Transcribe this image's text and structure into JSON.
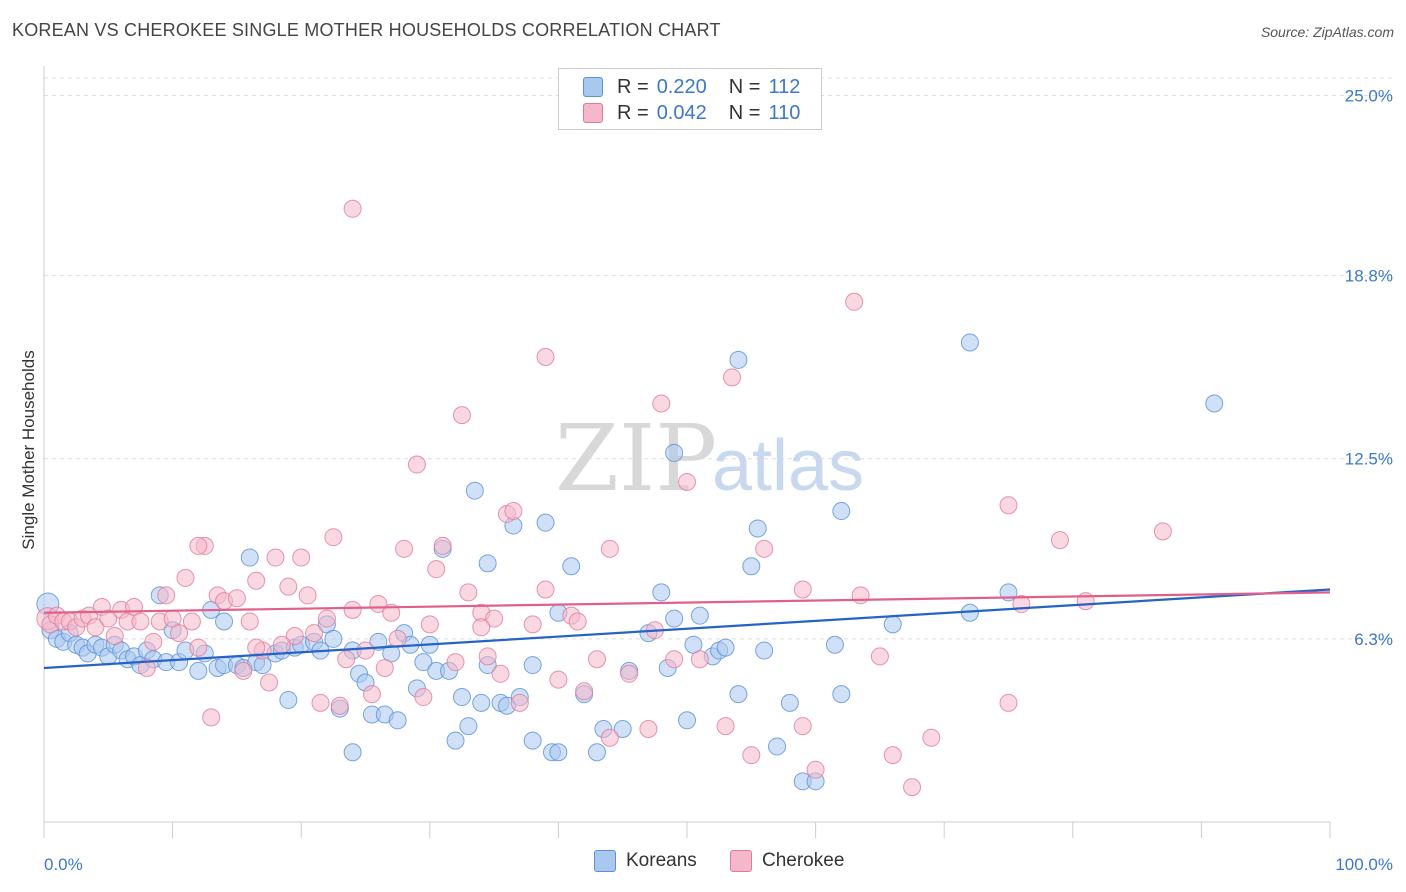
{
  "header": {
    "title": "KOREAN VS CHEROKEE SINGLE MOTHER HOUSEHOLDS CORRELATION CHART",
    "source": "Source: ZipAtlas.com"
  },
  "watermark": {
    "zip": "ZIP",
    "atlas": "atlas"
  },
  "legend": {
    "rows": [
      {
        "r_label": "R =",
        "r_value": "0.220",
        "n_label": "N =",
        "n_value": "112",
        "color": "#a9c8f0"
      },
      {
        "r_label": "R =",
        "r_value": "0.042",
        "n_label": "N =",
        "n_value": "110",
        "color": "#f5b8ca"
      }
    ]
  },
  "bottom_legend": [
    {
      "label": "Koreans",
      "color": "#a9c8f0"
    },
    {
      "label": "Cherokee",
      "color": "#f5b8ca"
    }
  ],
  "colors": {
    "korean_fill": "#a9c8f0",
    "korean_stroke": "#5b8fd6",
    "korean_line": "#2563c7",
    "cherokee_fill": "#f5b8ca",
    "cherokee_stroke": "#e07a9b",
    "cherokee_line": "#e0608a",
    "tick_text": "#3b78c9",
    "grid": "#dddddd"
  },
  "chart_data": {
    "type": "scatter",
    "title": "KOREAN VS CHEROKEE SINGLE MOTHER HOUSEHOLDS CORRELATION CHART",
    "xlabel": "",
    "ylabel": "Single Mother Households",
    "xlim": [
      0,
      100
    ],
    "ylim": [
      0,
      25.6
    ],
    "x_tick_labels": [
      "0.0%",
      "100.0%"
    ],
    "y_ticks": [
      6.3,
      12.5,
      18.8,
      25.0
    ],
    "y_tick_labels": [
      "6.3%",
      "12.5%",
      "18.8%",
      "25.0%"
    ],
    "grid": "horizontal dashed",
    "legend_position": "top-center",
    "series": [
      {
        "name": "Koreans",
        "trend": [
          [
            0,
            5.3
          ],
          [
            100,
            8.0
          ]
        ],
        "points": [
          [
            0.3,
            7.5
          ],
          [
            0.5,
            6.6
          ],
          [
            1,
            6.3
          ],
          [
            1.5,
            6.2
          ],
          [
            2,
            6.5
          ],
          [
            2.5,
            6.1
          ],
          [
            3,
            6.0
          ],
          [
            3.4,
            5.8
          ],
          [
            4,
            6.1
          ],
          [
            4.5,
            6.0
          ],
          [
            5,
            5.7
          ],
          [
            5.5,
            6.1
          ],
          [
            6,
            5.9
          ],
          [
            6.5,
            5.6
          ],
          [
            7,
            5.7
          ],
          [
            7.5,
            5.4
          ],
          [
            8,
            5.9
          ],
          [
            8.5,
            5.6
          ],
          [
            9,
            7.8
          ],
          [
            9.5,
            5.5
          ],
          [
            10,
            6.6
          ],
          [
            10.5,
            5.5
          ],
          [
            11,
            5.9
          ],
          [
            12,
            5.2
          ],
          [
            12.5,
            5.8
          ],
          [
            13,
            7.3
          ],
          [
            13.5,
            5.3
          ],
          [
            14,
            5.4
          ],
          [
            14,
            6.9
          ],
          [
            15,
            5.4
          ],
          [
            15.5,
            5.3
          ],
          [
            16,
            9.1
          ],
          [
            16.5,
            5.5
          ],
          [
            17,
            5.4
          ],
          [
            18,
            5.8
          ],
          [
            18.5,
            5.9
          ],
          [
            19,
            4.2
          ],
          [
            19.5,
            6.0
          ],
          [
            20,
            6.1
          ],
          [
            21,
            6.2
          ],
          [
            21.5,
            5.9
          ],
          [
            22,
            6.8
          ],
          [
            22.5,
            6.3
          ],
          [
            23,
            3.9
          ],
          [
            24,
            5.9
          ],
          [
            24,
            2.4
          ],
          [
            24.5,
            5.1
          ],
          [
            25,
            4.8
          ],
          [
            25.5,
            3.7
          ],
          [
            26,
            6.2
          ],
          [
            26.5,
            3.7
          ],
          [
            27,
            5.8
          ],
          [
            27.5,
            3.5
          ],
          [
            28,
            6.5
          ],
          [
            28.5,
            6.1
          ],
          [
            29,
            4.6
          ],
          [
            29.5,
            5.5
          ],
          [
            30,
            6.1
          ],
          [
            30.5,
            5.2
          ],
          [
            31,
            9.4
          ],
          [
            31.5,
            5.2
          ],
          [
            32,
            2.8
          ],
          [
            32.5,
            4.3
          ],
          [
            33,
            3.3
          ],
          [
            33.5,
            11.4
          ],
          [
            34,
            4.1
          ],
          [
            34.5,
            5.4
          ],
          [
            34.5,
            8.9
          ],
          [
            35.5,
            4.1
          ],
          [
            36,
            4.0
          ],
          [
            36.5,
            10.2
          ],
          [
            37,
            4.3
          ],
          [
            38,
            5.4
          ],
          [
            38,
            2.8
          ],
          [
            39,
            10.3
          ],
          [
            39.5,
            2.4
          ],
          [
            40,
            7.2
          ],
          [
            41,
            8.8
          ],
          [
            42,
            4.4
          ],
          [
            43,
            2.4
          ],
          [
            43.5,
            3.2
          ],
          [
            45,
            3.2
          ],
          [
            47,
            6.5
          ],
          [
            48,
            7.9
          ],
          [
            48.5,
            5.3
          ],
          [
            49,
            12.7
          ],
          [
            49,
            7.0
          ],
          [
            50,
            3.5
          ],
          [
            50.5,
            6.1
          ],
          [
            51,
            7.1
          ],
          [
            52,
            5.7
          ],
          [
            52.5,
            5.9
          ],
          [
            53,
            6.0
          ],
          [
            54,
            4.4
          ],
          [
            54,
            15.9
          ],
          [
            55,
            8.8
          ],
          [
            55.5,
            10.1
          ],
          [
            56,
            5.9
          ],
          [
            57,
            2.6
          ],
          [
            58,
            4.1
          ],
          [
            59,
            1.4
          ],
          [
            60,
            1.4
          ],
          [
            62,
            10.7
          ],
          [
            62,
            4.4
          ],
          [
            66,
            6.8
          ],
          [
            72,
            7.2
          ],
          [
            75,
            7.9
          ],
          [
            72,
            16.5
          ],
          [
            91,
            14.4
          ],
          [
            61.5,
            6.1
          ],
          [
            45.5,
            5.2
          ],
          [
            40,
            2.4
          ]
        ]
      },
      {
        "name": "Cherokee",
        "trend": [
          [
            0,
            7.2
          ],
          [
            100,
            7.9
          ]
        ],
        "points": [
          [
            0.3,
            7.0
          ],
          [
            0.5,
            6.8
          ],
          [
            1,
            7.1
          ],
          [
            1.5,
            6.9
          ],
          [
            2,
            6.9
          ],
          [
            2.5,
            6.7
          ],
          [
            3,
            7.0
          ],
          [
            3.5,
            7.1
          ],
          [
            4,
            6.7
          ],
          [
            4.5,
            7.4
          ],
          [
            5,
            7.0
          ],
          [
            5.5,
            6.4
          ],
          [
            6,
            7.3
          ],
          [
            6.5,
            6.9
          ],
          [
            7,
            7.4
          ],
          [
            7.5,
            6.9
          ],
          [
            8,
            5.3
          ],
          [
            8.5,
            6.2
          ],
          [
            9,
            6.9
          ],
          [
            9.5,
            7.8
          ],
          [
            10,
            7.0
          ],
          [
            10.5,
            6.5
          ],
          [
            11,
            8.4
          ],
          [
            11.5,
            6.9
          ],
          [
            12,
            6.0
          ],
          [
            12.5,
            9.5
          ],
          [
            13,
            3.6
          ],
          [
            13.5,
            7.8
          ],
          [
            14,
            7.6
          ],
          [
            15,
            7.7
          ],
          [
            15.5,
            5.2
          ],
          [
            16,
            6.9
          ],
          [
            16.5,
            8.3
          ],
          [
            17,
            5.9
          ],
          [
            17.5,
            4.8
          ],
          [
            18,
            9.1
          ],
          [
            19,
            8.1
          ],
          [
            19.5,
            6.4
          ],
          [
            20,
            9.1
          ],
          [
            20.5,
            7.8
          ],
          [
            21,
            6.5
          ],
          [
            21.5,
            4.1
          ],
          [
            22,
            7.0
          ],
          [
            22.5,
            9.8
          ],
          [
            23,
            4.0
          ],
          [
            24,
            7.3
          ],
          [
            24,
            21.1
          ],
          [
            25,
            5.9
          ],
          [
            25.5,
            4.4
          ],
          [
            26,
            7.5
          ],
          [
            26.5,
            5.3
          ],
          [
            27,
            7.2
          ],
          [
            27.5,
            6.3
          ],
          [
            28,
            9.4
          ],
          [
            29,
            12.3
          ],
          [
            29.5,
            4.3
          ],
          [
            30,
            6.8
          ],
          [
            30.5,
            8.7
          ],
          [
            31,
            9.5
          ],
          [
            32,
            5.5
          ],
          [
            32.5,
            14.0
          ],
          [
            33,
            7.9
          ],
          [
            34,
            7.2
          ],
          [
            34.5,
            5.7
          ],
          [
            35,
            7.0
          ],
          [
            35.5,
            5.1
          ],
          [
            36,
            10.6
          ],
          [
            36.5,
            10.7
          ],
          [
            37,
            4.1
          ],
          [
            38,
            6.8
          ],
          [
            39,
            8.0
          ],
          [
            39,
            16.0
          ],
          [
            40,
            4.9
          ],
          [
            41,
            7.1
          ],
          [
            41.5,
            6.9
          ],
          [
            42,
            4.5
          ],
          [
            43,
            5.6
          ],
          [
            44,
            9.4
          ],
          [
            44,
            2.9
          ],
          [
            45.5,
            5.1
          ],
          [
            47,
            3.2
          ],
          [
            47.5,
            6.6
          ],
          [
            48,
            14.4
          ],
          [
            49,
            5.6
          ],
          [
            50,
            11.7
          ],
          [
            51,
            5.6
          ],
          [
            53,
            3.3
          ],
          [
            53.5,
            15.3
          ],
          [
            55,
            2.3
          ],
          [
            56,
            9.4
          ],
          [
            59,
            3.3
          ],
          [
            59,
            8.0
          ],
          [
            60,
            1.8
          ],
          [
            63,
            17.9
          ],
          [
            63.5,
            7.8
          ],
          [
            65,
            5.7
          ],
          [
            66,
            2.3
          ],
          [
            67.5,
            1.2
          ],
          [
            69,
            2.9
          ],
          [
            75,
            10.9
          ],
          [
            76,
            7.5
          ],
          [
            75,
            4.1
          ],
          [
            79,
            9.7
          ],
          [
            81,
            7.6
          ],
          [
            87,
            10.0
          ],
          [
            16.5,
            6.0
          ],
          [
            12,
            9.5
          ],
          [
            23.5,
            5.6
          ],
          [
            18.5,
            6.1
          ],
          [
            34,
            6.7
          ]
        ]
      }
    ]
  }
}
